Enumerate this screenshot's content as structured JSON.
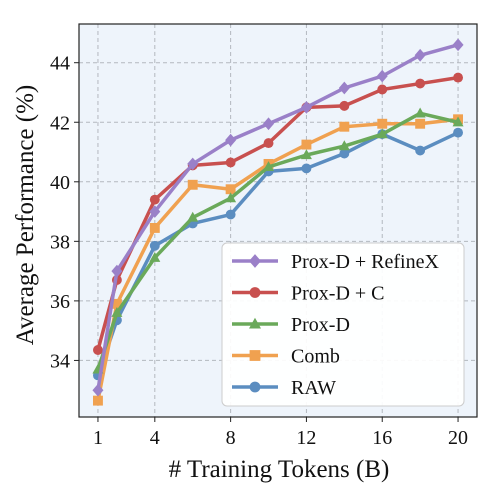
{
  "chart_data": {
    "type": "line",
    "title": "",
    "xlabel": "# Training Tokens (B)",
    "ylabel": "Average Performance (%)",
    "xlim": [
      0,
      21
    ],
    "ylim": [
      32.1,
      45.3
    ],
    "xticks": [
      1,
      4,
      8,
      12,
      16,
      20
    ],
    "yticks": [
      34,
      36,
      38,
      40,
      42,
      44
    ],
    "grid": true,
    "legend_position": "lower-right",
    "background_color": "#eef4fb",
    "x": [
      1,
      2,
      4,
      6,
      8,
      10,
      12,
      14,
      16,
      18,
      20
    ],
    "series": [
      {
        "name": "Prox-D + RefineX",
        "color": "#9a80c8",
        "marker": "diamond",
        "values": [
          33.0,
          37.0,
          39.0,
          40.6,
          41.4,
          41.95,
          42.5,
          43.15,
          43.55,
          44.25,
          44.6
        ]
      },
      {
        "name": "Prox-D + C",
        "color": "#c8504f",
        "marker": "circle",
        "values": [
          34.35,
          36.7,
          39.4,
          40.55,
          40.65,
          41.3,
          42.5,
          42.55,
          43.1,
          43.3,
          43.5
        ]
      },
      {
        "name": "Prox-D",
        "color": "#6aa95a",
        "marker": "triangle",
        "values": [
          33.7,
          35.6,
          37.45,
          38.8,
          39.45,
          40.5,
          40.9,
          41.2,
          41.6,
          42.3,
          42.0
        ]
      },
      {
        "name": "Comb",
        "color": "#f0a150",
        "marker": "square",
        "values": [
          32.65,
          35.9,
          38.45,
          39.9,
          39.75,
          40.6,
          41.25,
          41.85,
          41.95,
          41.95,
          42.1
        ]
      },
      {
        "name": "RAW",
        "color": "#5b8dc0",
        "marker": "circle",
        "values": [
          33.5,
          35.35,
          37.85,
          38.6,
          38.9,
          40.35,
          40.45,
          40.95,
          41.6,
          41.05,
          41.65
        ]
      }
    ]
  }
}
